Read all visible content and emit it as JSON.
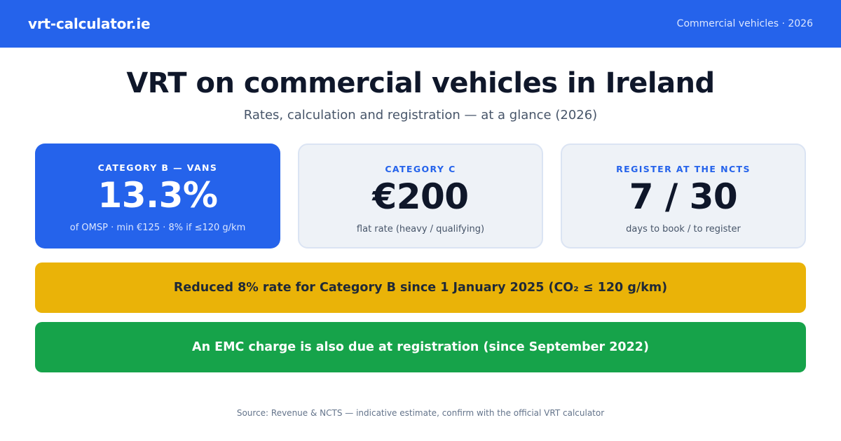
{
  "header": {
    "brand": "vrt-calculator.ie",
    "tagline": "Commercial vehicles · 2026"
  },
  "hero": {
    "title": "VRT on commercial vehicles in Ireland",
    "subtitle": "Rates, calculation and registration — at a glance (2026)"
  },
  "cards": [
    {
      "label": "CATEGORY B — VANS",
      "value": "13.3%",
      "note": "of OMSP · min €125 · 8% if ≤120 g/km"
    },
    {
      "label": "CATEGORY C",
      "value": "€200",
      "note": "flat rate (heavy / qualifying)"
    },
    {
      "label": "REGISTER AT THE NCTS",
      "value": "7 / 30",
      "note": "days to book / to register"
    }
  ],
  "banners": {
    "reduced_rate": "Reduced 8% rate for Category B since 1 January 2025 (CO₂ ≤ 120 g/km)",
    "emc": "An EMC charge is also due at registration (since September 2022)"
  },
  "footer": {
    "source": "Source: Revenue & NCTS — indicative estimate, confirm with the official VRT calculator"
  },
  "colors": {
    "primary": "#2563eb",
    "warning": "#eab308",
    "success": "#16a34a"
  }
}
